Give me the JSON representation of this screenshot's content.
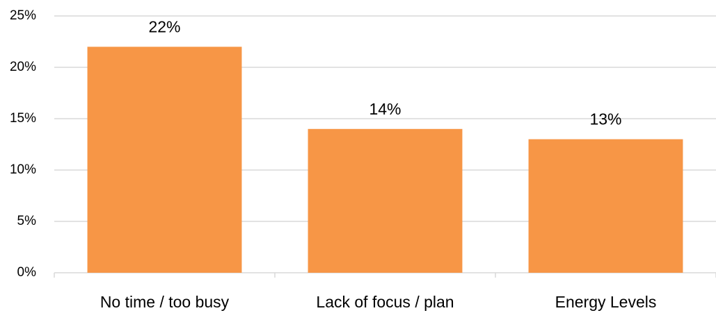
{
  "chart_data": {
    "type": "bar",
    "categories": [
      "No time / too busy",
      "Lack of focus / plan",
      "Energy Levels"
    ],
    "values": [
      22,
      14,
      13
    ],
    "value_labels": [
      "22%",
      "14%",
      "13%"
    ],
    "color": "#f79646",
    "ylim": [
      0,
      25
    ],
    "yticks": [
      {
        "value": 0,
        "label": "0%"
      },
      {
        "value": 5,
        "label": "5%"
      },
      {
        "value": 10,
        "label": "10%"
      },
      {
        "value": 15,
        "label": "15%"
      },
      {
        "value": 20,
        "label": "20%"
      },
      {
        "value": 25,
        "label": "25%"
      }
    ],
    "grid": true
  }
}
